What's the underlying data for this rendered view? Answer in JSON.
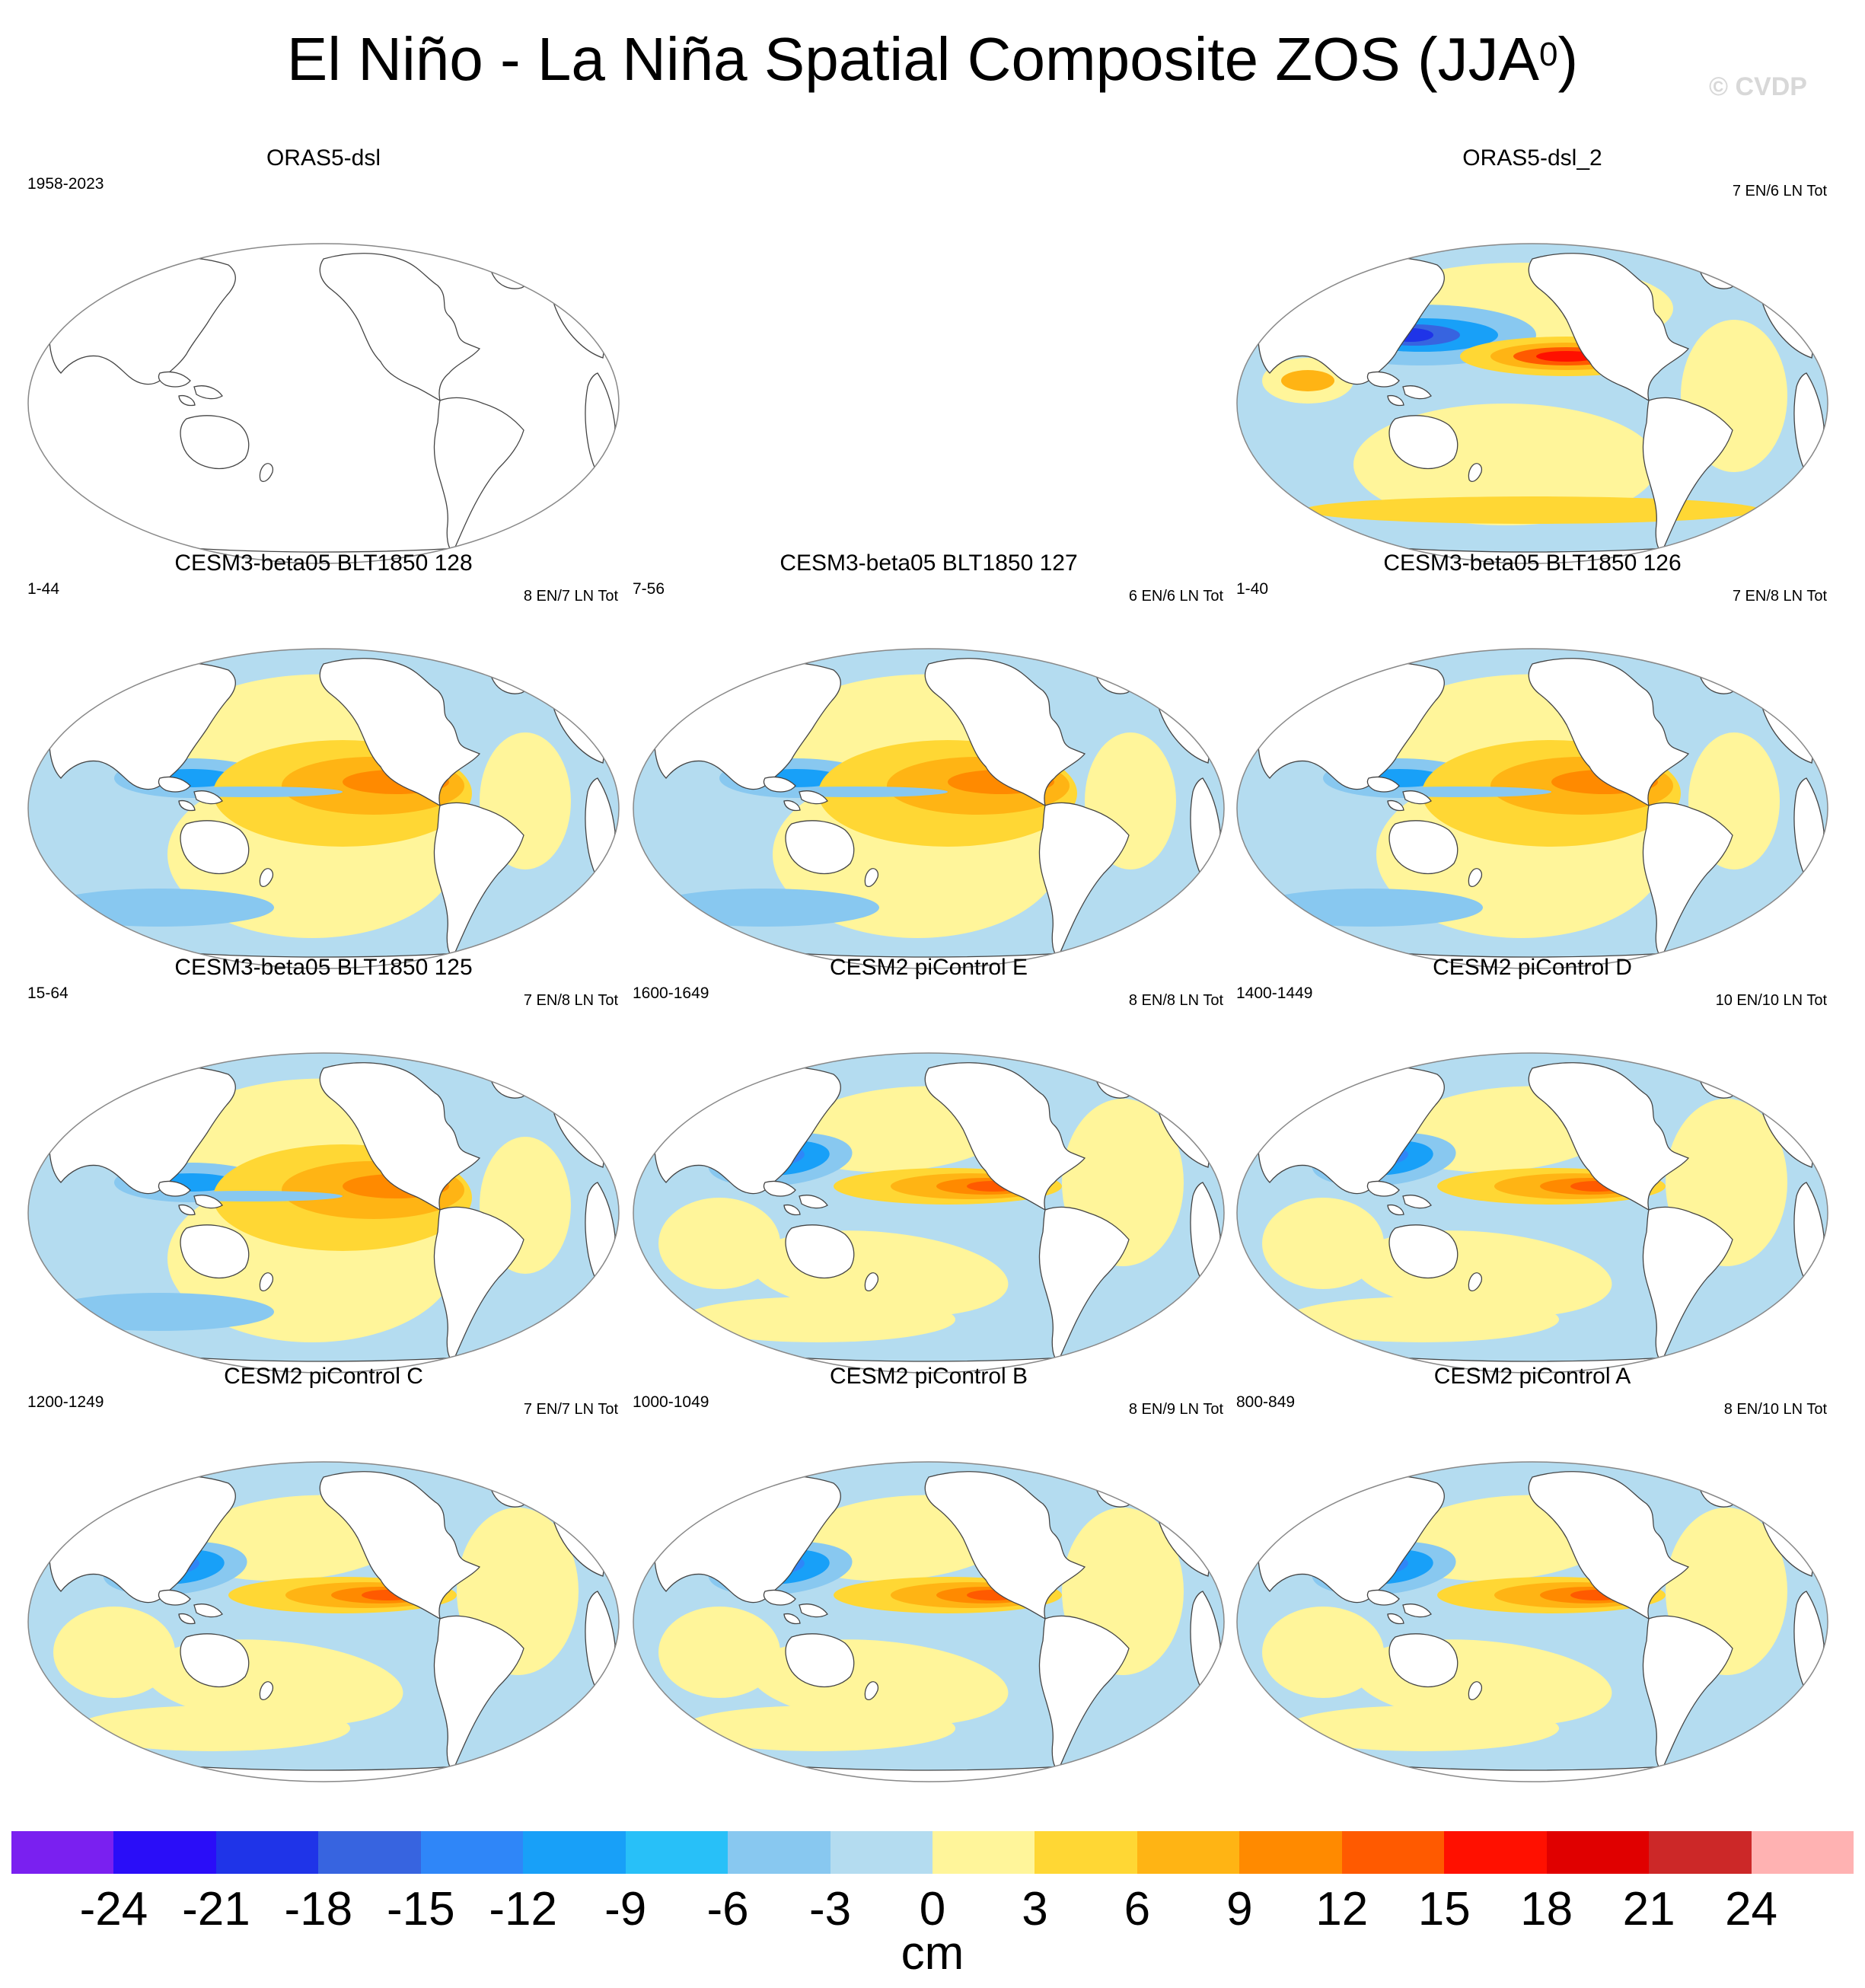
{
  "title": "El Niño - La Niña Spatial Composite ZOS (JJA",
  "title_superscript": "0",
  "title_close": ")",
  "watermark": "© CVDP",
  "panels": [
    {
      "title": "ORAS5-dsl",
      "years": "1958-2023",
      "counts": "",
      "empty": true
    },
    {
      "title": "ORAS5-dsl_2",
      "years": "",
      "counts": "7 EN/6 LN Tot",
      "pattern": "obs"
    },
    {
      "title": "CESM3-beta05 BLT1850 128",
      "years": "1-44",
      "counts": "8 EN/7 LN Tot",
      "pattern": "beta"
    },
    {
      "title": "CESM3-beta05 BLT1850 127",
      "years": "7-56",
      "counts": "6 EN/6 LN Tot",
      "pattern": "beta"
    },
    {
      "title": "CESM3-beta05 BLT1850 126",
      "years": "1-40",
      "counts": "7 EN/8 LN Tot",
      "pattern": "beta"
    },
    {
      "title": "CESM3-beta05 BLT1850 125",
      "years": "15-64",
      "counts": "7 EN/8 LN Tot",
      "pattern": "beta"
    },
    {
      "title": "CESM2 piControl E",
      "years": "1600-1649",
      "counts": "8 EN/8 LN Tot",
      "pattern": "cesm2"
    },
    {
      "title": "CESM2 piControl D",
      "years": "1400-1449",
      "counts": "10 EN/10 LN Tot",
      "pattern": "cesm2"
    },
    {
      "title": "CESM2 piControl C",
      "years": "1200-1249",
      "counts": "7 EN/7 LN Tot",
      "pattern": "cesm2"
    },
    {
      "title": "CESM2 piControl B",
      "years": "1000-1049",
      "counts": "8 EN/9 LN Tot",
      "pattern": "cesm2"
    },
    {
      "title": "CESM2 piControl A",
      "years": "800-849",
      "counts": "8 EN/10 LN Tot",
      "pattern": "cesm2"
    }
  ],
  "chart_data": {
    "type": "heatmap",
    "variable": "ZOS",
    "season": "JJA",
    "colorbar": {
      "unit": "cm",
      "ticks": [
        -24,
        -21,
        -18,
        -15,
        -12,
        -9,
        -6,
        -3,
        0,
        3,
        6,
        9,
        12,
        15,
        18,
        21,
        24
      ],
      "colors": [
        "#7a20f0",
        "#2a0df8",
        "#1f34e8",
        "#3764e0",
        "#2f86f8",
        "#18a0f8",
        "#28c0f8",
        "#88c8f0",
        "#b4dcf0",
        "#fff59a",
        "#ffd734",
        "#ffb414",
        "#ff8a00",
        "#ff5a00",
        "#ff1000",
        "#e00000",
        "#cc2828",
        "#ffb2b2"
      ]
    }
  }
}
